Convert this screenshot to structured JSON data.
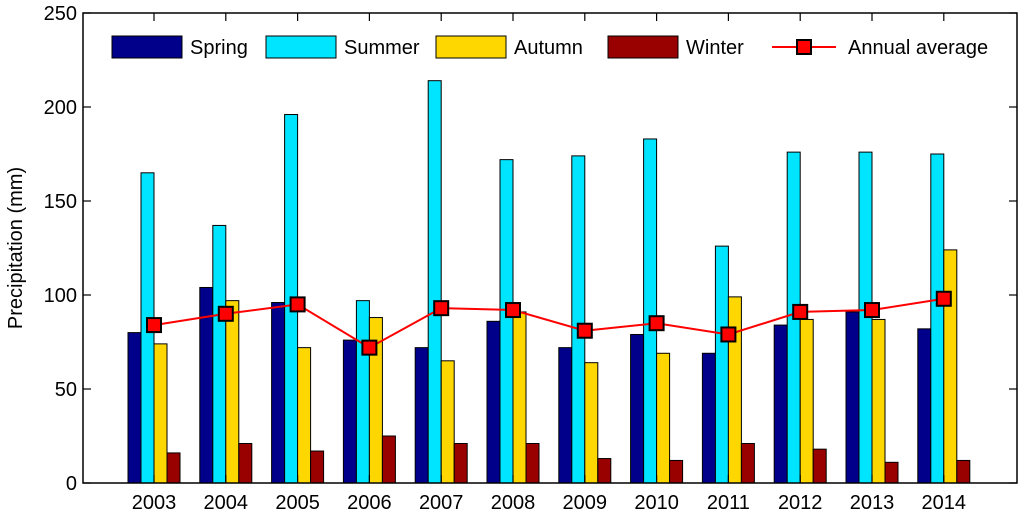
{
  "chart_data": {
    "type": "bar",
    "title": "",
    "xlabel": "",
    "ylabel": "Precipitation (mm)",
    "ylim": [
      0,
      250
    ],
    "yticks": [
      0,
      50,
      100,
      150,
      200,
      250
    ],
    "grid": false,
    "legend_position": "top",
    "categories": [
      "2003",
      "2004",
      "2005",
      "2006",
      "2007",
      "2008",
      "2009",
      "2010",
      "2011",
      "2012",
      "2013",
      "2014"
    ],
    "series": [
      {
        "name": "Spring",
        "kind": "bar",
        "color": "#00008B",
        "values": [
          80,
          104,
          96,
          76,
          72,
          86,
          72,
          79,
          69,
          84,
          91,
          82
        ]
      },
      {
        "name": "Summer",
        "kind": "bar",
        "color": "#00E5FF",
        "values": [
          165,
          137,
          196,
          97,
          214,
          172,
          174,
          183,
          126,
          176,
          176,
          175
        ]
      },
      {
        "name": "Autumn",
        "kind": "bar",
        "color": "#FFD700",
        "values": [
          74,
          97,
          72,
          88,
          65,
          91,
          64,
          69,
          99,
          87,
          87,
          124
        ]
      },
      {
        "name": "Winter",
        "kind": "bar",
        "color": "#990000",
        "values": [
          16,
          21,
          17,
          25,
          21,
          21,
          13,
          12,
          21,
          18,
          11,
          12
        ]
      },
      {
        "name": "Annual average",
        "kind": "line",
        "color": "#FF0000",
        "marker_color": "#FF0000",
        "values": [
          84,
          90,
          95,
          72,
          93,
          92,
          81,
          85,
          79,
          91,
          92,
          98
        ]
      }
    ]
  }
}
